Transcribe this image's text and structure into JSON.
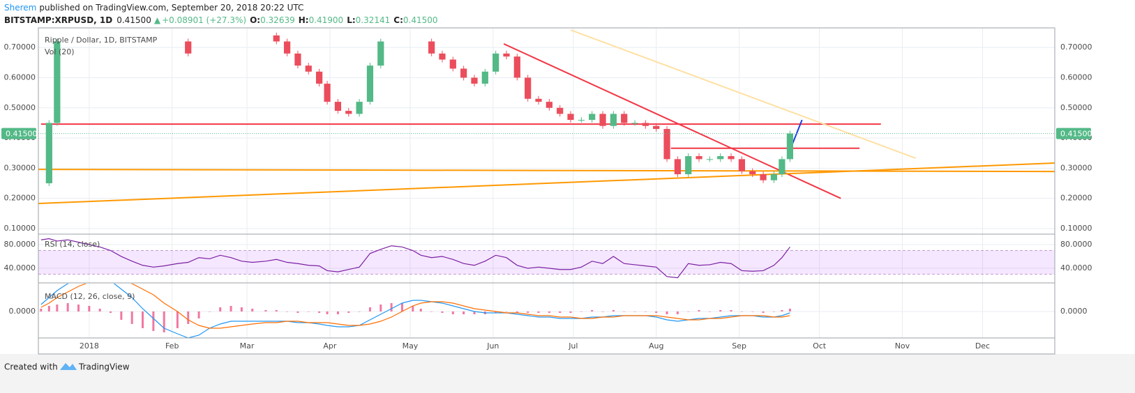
{
  "header": {
    "author": "Sherem",
    "published": "published on TradingView.com, September 20, 2018 20:22 UTC",
    "symbol": "BITSTAMP:XRPUSD, 1D",
    "last": "0.41500",
    "arrow": "▲",
    "change": "+0.08901 (+27.3%)",
    "ohlc": [
      {
        "label": "O:",
        "value": "0.32639"
      },
      {
        "label": "H:",
        "value": "0.41900"
      },
      {
        "label": "L:",
        "value": "0.32141"
      },
      {
        "label": "C:",
        "value": "0.41500"
      }
    ]
  },
  "footer": {
    "created": "Created with",
    "brand": "TradingView"
  },
  "chart_data": {
    "type": "candlestick",
    "title": "Ripple / Dollar, 1D, BITSTAMP",
    "volume_label": "Vol (20)",
    "up_color": "#53b987",
    "down_color": "#eb4d5c",
    "grid": true,
    "x": [
      -18,
      -15,
      -12,
      -8,
      -4,
      0,
      4,
      8,
      12,
      16,
      20,
      24,
      28,
      33,
      37,
      41,
      45,
      49,
      53,
      57,
      61,
      66,
      70,
      74,
      78,
      82,
      86,
      89,
      93,
      97,
      101,
      105,
      109,
      113,
      117,
      121,
      124,
      128,
      132,
      136,
      140,
      144,
      148,
      152,
      156,
      160,
      164,
      168,
      172,
      176,
      180,
      184,
      188,
      192,
      196,
      200,
      204,
      208,
      212,
      216,
      220,
      224,
      228,
      232,
      236,
      240,
      244,
      248,
      252,
      256,
      259,
      262
    ],
    "close": [
      0.25,
      0.45,
      0.72,
      null,
      null,
      null,
      null,
      null,
      null,
      null,
      null,
      null,
      null,
      0.72,
      0.68,
      null,
      null,
      null,
      null,
      null,
      null,
      0.74,
      0.72,
      0.68,
      0.64,
      0.62,
      0.58,
      0.52,
      0.49,
      0.48,
      0.52,
      0.64,
      0.72,
      null,
      null,
      null,
      0.72,
      0.68,
      0.66,
      0.63,
      0.6,
      0.58,
      0.62,
      0.68,
      0.67,
      0.6,
      0.53,
      0.52,
      0.5,
      0.48,
      0.46,
      0.46,
      0.48,
      0.44,
      0.48,
      0.45,
      0.45,
      0.44,
      0.43,
      0.33,
      0.28,
      0.34,
      0.33,
      0.33,
      0.34,
      0.33,
      0.29,
      0.28,
      0.26,
      0.28,
      0.33,
      0.415
    ],
    "xlim": [
      -19,
      361
    ],
    "xticks": [
      {
        "value": 0,
        "label": "2018"
      },
      {
        "value": 31,
        "label": "Feb"
      },
      {
        "value": 59,
        "label": "Mar"
      },
      {
        "value": 90,
        "label": "Apr"
      },
      {
        "value": 120,
        "label": "May"
      },
      {
        "value": 151,
        "label": "Jun"
      },
      {
        "value": 181,
        "label": "Jul"
      },
      {
        "value": 212,
        "label": "Aug"
      },
      {
        "value": 243,
        "label": "Sep"
      },
      {
        "value": 273,
        "label": "Oct"
      },
      {
        "value": 304,
        "label": "Nov"
      },
      {
        "value": 334,
        "label": "Dec"
      }
    ],
    "ylim": [
      0.0838,
      0.765
    ],
    "yticks": [
      {
        "value": 0.1,
        "label": "0.10000"
      },
      {
        "value": 0.2,
        "label": "0.20000"
      },
      {
        "value": 0.3,
        "label": "0.30000"
      },
      {
        "value": 0.4,
        "label": "0.40000"
      },
      {
        "value": 0.5,
        "label": "0.50000"
      },
      {
        "value": 0.6,
        "label": "0.60000"
      },
      {
        "value": 0.7,
        "label": "0.70000"
      }
    ],
    "last_price": {
      "value": 0.415,
      "label": "0.41500"
    },
    "drawings": [
      {
        "color": "#f23645",
        "from": [
          -18,
          0.446
        ],
        "to": [
          296,
          0.446
        ]
      },
      {
        "color": "#f23645",
        "from": [
          217.5,
          0.366
        ],
        "to": [
          288,
          0.366
        ]
      },
      {
        "color": "#f23645",
        "from": [
          155,
          0.712
        ],
        "to": [
          281,
          0.2
        ]
      },
      {
        "color": "#ff9800",
        "from": [
          -19,
          0.183
        ],
        "to": [
          361,
          0.317
        ]
      },
      {
        "color": "#ff9800",
        "from": [
          -19,
          0.296
        ],
        "to": [
          361,
          0.289
        ]
      },
      {
        "color": "#ffe0a3",
        "from": [
          180,
          0.758
        ],
        "to": [
          309,
          0.333
        ]
      },
      {
        "color": "#1e3ee6",
        "from": [
          263,
          0.382
        ],
        "to": [
          266.5,
          0.46
        ]
      }
    ],
    "rsi": {
      "label": "RSI (14, close)",
      "color": "#7b1fa2",
      "band": [
        30,
        70
      ],
      "ylim": [
        16.5,
        96.5
      ],
      "yticks": [
        {
          "value": 40,
          "label": "40.0000"
        },
        {
          "value": 80,
          "label": "80.0000"
        }
      ],
      "values": [
        88,
        90,
        86,
        88,
        84,
        80,
        76,
        70,
        60,
        52,
        45,
        42,
        44,
        48,
        50,
        58,
        56,
        62,
        58,
        52,
        50,
        52,
        55,
        50,
        48,
        45,
        44,
        36,
        34,
        38,
        42,
        65,
        72,
        78,
        76,
        70,
        62,
        58,
        60,
        55,
        48,
        45,
        52,
        62,
        58,
        45,
        40,
        42,
        40,
        38,
        38,
        42,
        52,
        48,
        60,
        48,
        46,
        44,
        42,
        26,
        24,
        48,
        45,
        46,
        50,
        48,
        36,
        35,
        36,
        45,
        58,
        76
      ]
    },
    "macd": {
      "label": "MACD (12, 26, close, 9)",
      "ylim": [
        -0.19,
        0.2
      ],
      "yticks": [
        {
          "value": 0,
          "label": "0.0000"
        }
      ],
      "macd_color": "#2196f3",
      "signal_color": "#ff6d00",
      "hist_color": "#e91e63",
      "macd_values": [
        0.05,
        0.1,
        0.15,
        0.2,
        0.22,
        0.24,
        0.24,
        0.22,
        0.16,
        0.1,
        0.02,
        -0.05,
        -0.12,
        -0.16,
        -0.19,
        -0.17,
        -0.12,
        -0.09,
        -0.07,
        -0.07,
        -0.07,
        -0.07,
        -0.07,
        -0.07,
        -0.08,
        -0.08,
        -0.09,
        -0.1,
        -0.11,
        -0.11,
        -0.1,
        -0.06,
        -0.02,
        0.02,
        0.06,
        0.08,
        0.08,
        0.07,
        0.06,
        0.04,
        0.02,
        0,
        -0.01,
        -0.01,
        -0.01,
        -0.02,
        -0.03,
        -0.04,
        -0.04,
        -0.05,
        -0.05,
        -0.05,
        -0.04,
        -0.04,
        -0.03,
        -0.03,
        -0.03,
        -0.03,
        -0.04,
        -0.06,
        -0.07,
        -0.06,
        -0.05,
        -0.05,
        -0.04,
        -0.03,
        -0.03,
        -0.03,
        -0.04,
        -0.04,
        -0.03,
        -0.01
      ],
      "signal_values": [
        0.03,
        0.06,
        0.1,
        0.14,
        0.18,
        0.21,
        0.22,
        0.23,
        0.22,
        0.2,
        0.16,
        0.12,
        0.06,
        0,
        -0.06,
        -0.1,
        -0.12,
        -0.12,
        -0.11,
        -0.1,
        -0.09,
        -0.08,
        -0.08,
        -0.07,
        -0.07,
        -0.08,
        -0.08,
        -0.08,
        -0.09,
        -0.1,
        -0.1,
        -0.09,
        -0.07,
        -0.04,
        0,
        0.04,
        0.06,
        0.07,
        0.07,
        0.06,
        0.04,
        0.02,
        0.01,
        0,
        -0.01,
        -0.01,
        -0.02,
        -0.03,
        -0.03,
        -0.04,
        -0.04,
        -0.05,
        -0.05,
        -0.04,
        -0.04,
        -0.03,
        -0.03,
        -0.03,
        -0.03,
        -0.04,
        -0.05,
        -0.06,
        -0.06,
        -0.05,
        -0.05,
        -0.04,
        -0.03,
        -0.03,
        -0.03,
        -0.04,
        -0.04,
        -0.03
      ],
      "hist_values": [
        0.02,
        0.04,
        0.05,
        0.06,
        0.05,
        0.04,
        0.02,
        -0.01,
        -0.06,
        -0.09,
        -0.12,
        -0.14,
        -0.15,
        -0.12,
        -0.09,
        -0.05,
        0,
        0.03,
        0.04,
        0.03,
        0.02,
        0.01,
        0.01,
        0,
        -0.01,
        0,
        -0.01,
        -0.02,
        -0.02,
        -0.01,
        0,
        0.03,
        0.05,
        0.06,
        0.06,
        0.04,
        0.02,
        0,
        -0.01,
        -0.02,
        -0.02,
        -0.02,
        -0.02,
        -0.01,
        0,
        -0.01,
        -0.01,
        -0.01,
        -0.01,
        -0.01,
        -0.01,
        0,
        0.01,
        0,
        0.01,
        0,
        0,
        0,
        -0.01,
        -0.02,
        -0.02,
        0,
        0.01,
        0,
        0.01,
        0.01,
        0,
        0,
        -0.01,
        0,
        0.01,
        0.02
      ]
    }
  }
}
